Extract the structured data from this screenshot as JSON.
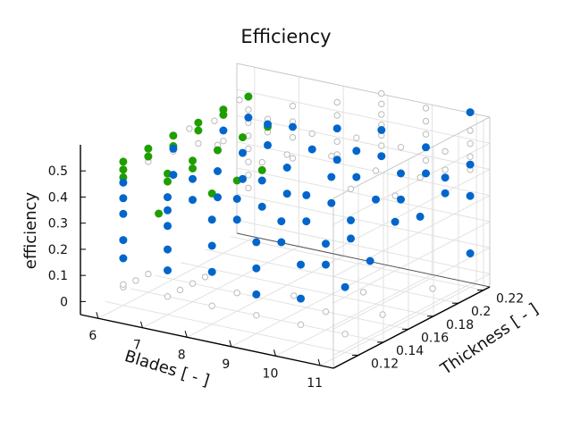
{
  "chart_data": {
    "type": "scatter",
    "title": "Efficiency",
    "xlabel": "Blades [ - ]",
    "ylabel": "Thickness [ - ]",
    "zlabel": "efficiency",
    "xlim": [
      5.6,
      11.3
    ],
    "ylim": [
      0.1,
      0.225
    ],
    "zlim": [
      -0.05,
      0.6
    ],
    "xticks": [
      "6",
      "7",
      "8",
      "9",
      "10",
      "11"
    ],
    "yticks": [
      "0.12",
      "0.14",
      "0.16",
      "0.18",
      "0.2",
      "0.22"
    ],
    "zticks": [
      "0",
      "0.1",
      "0.2",
      "0.3",
      "0.4",
      "0.5"
    ],
    "grid": true,
    "colors": {
      "pareto": "#1f9e00",
      "feasible": "#0066cc",
      "other": "#bbbbbb"
    },
    "series": [
      {
        "marker": "open-circle",
        "points": [
          [
            6,
            0.22,
            0.5
          ],
          [
            6,
            0.22,
            0.45
          ],
          [
            6,
            0.22,
            0.4
          ],
          [
            6,
            0.22,
            0.35
          ],
          [
            6,
            0.22,
            0.3
          ],
          [
            6,
            0.22,
            0.25
          ],
          [
            6,
            0.22,
            0.2
          ],
          [
            6,
            0.22,
            0.15
          ],
          [
            6,
            0.2,
            0.48
          ],
          [
            6,
            0.2,
            0.38
          ],
          [
            6,
            0.18,
            0.5
          ],
          [
            6,
            0.18,
            0.42
          ],
          [
            6,
            0.16,
            0.5
          ],
          [
            6,
            0.16,
            0.44
          ],
          [
            6,
            0.14,
            0.5
          ],
          [
            6,
            0.14,
            0.45
          ],
          [
            6,
            0.12,
            0.02
          ],
          [
            6,
            0.12,
            0.03
          ],
          [
            6,
            0.13,
            0.02
          ],
          [
            6,
            0.14,
            0.02
          ],
          [
            7,
            0.22,
            0.5
          ],
          [
            7,
            0.22,
            0.44
          ],
          [
            7,
            0.22,
            0.38
          ],
          [
            7,
            0.22,
            0.3
          ],
          [
            7,
            0.2,
            0.5
          ],
          [
            7,
            0.2,
            0.45
          ],
          [
            7,
            0.18,
            0.48
          ],
          [
            7,
            0.16,
            0.5
          ],
          [
            7,
            0.12,
            0.02
          ],
          [
            7,
            0.13,
            0.02
          ],
          [
            7,
            0.14,
            0.02
          ],
          [
            7,
            0.15,
            0.02
          ],
          [
            8,
            0.22,
            0.55
          ],
          [
            8,
            0.22,
            0.5
          ],
          [
            8,
            0.22,
            0.45
          ],
          [
            8,
            0.22,
            0.4
          ],
          [
            8,
            0.22,
            0.35
          ],
          [
            8,
            0.2,
            0.48
          ],
          [
            8,
            0.18,
            0.45
          ],
          [
            8,
            0.16,
            0.47
          ],
          [
            8,
            0.12,
            0.02
          ],
          [
            8,
            0.14,
            0.02
          ],
          [
            9,
            0.22,
            0.62
          ],
          [
            9,
            0.22,
            0.58
          ],
          [
            9,
            0.22,
            0.54
          ],
          [
            9,
            0.22,
            0.5
          ],
          [
            9,
            0.22,
            0.46
          ],
          [
            9,
            0.22,
            0.42
          ],
          [
            9,
            0.2,
            0.5
          ],
          [
            9,
            0.18,
            0.48
          ],
          [
            9,
            0.12,
            0.02
          ],
          [
            9,
            0.15,
            0.02
          ],
          [
            10,
            0.22,
            0.6
          ],
          [
            10,
            0.22,
            0.55
          ],
          [
            10,
            0.22,
            0.5
          ],
          [
            10,
            0.22,
            0.45
          ],
          [
            10,
            0.22,
            0.4
          ],
          [
            10,
            0.2,
            0.5
          ],
          [
            10,
            0.18,
            0.46
          ],
          [
            10,
            0.16,
            0.44
          ],
          [
            10,
            0.12,
            0.02
          ],
          [
            10,
            0.14,
            0.02
          ],
          [
            10,
            0.17,
            0.02
          ],
          [
            11,
            0.22,
            0.55
          ],
          [
            11,
            0.22,
            0.5
          ],
          [
            11,
            0.22,
            0.45
          ],
          [
            11,
            0.22,
            0.4
          ],
          [
            11,
            0.2,
            0.52
          ],
          [
            11,
            0.2,
            0.45
          ],
          [
            11,
            0.18,
            0.47
          ],
          [
            11,
            0.16,
            0.45
          ],
          [
            11,
            0.12,
            0.02
          ],
          [
            11,
            0.15,
            0.02
          ],
          [
            11,
            0.19,
            0.02
          ],
          [
            5.8,
            0.22,
            0.48
          ],
          [
            5.8,
            0.2,
            0.45
          ],
          [
            5.8,
            0.18,
            0.47
          ]
        ]
      },
      {
        "marker": "filled-circle",
        "points": [
          [
            6,
            0.12,
            0.5
          ],
          [
            6,
            0.12,
            0.47
          ],
          [
            6,
            0.12,
            0.44
          ],
          [
            6,
            0.14,
            0.5
          ],
          [
            6,
            0.14,
            0.47
          ],
          [
            6,
            0.16,
            0.5
          ],
          [
            6,
            0.16,
            0.46
          ],
          [
            6,
            0.18,
            0.5
          ],
          [
            6,
            0.18,
            0.47
          ],
          [
            6,
            0.2,
            0.5
          ],
          [
            6,
            0.2,
            0.48
          ],
          [
            6,
            0.22,
            0.5
          ],
          [
            7,
            0.12,
            0.49
          ],
          [
            7,
            0.12,
            0.46
          ],
          [
            7,
            0.14,
            0.49
          ],
          [
            7,
            0.14,
            0.46
          ],
          [
            7,
            0.16,
            0.48
          ],
          [
            7,
            0.18,
            0.48
          ],
          [
            7,
            0.2,
            0.47
          ],
          [
            8,
            0.12,
            0.45
          ],
          [
            8,
            0.14,
            0.45
          ],
          [
            8,
            0.16,
            0.44
          ],
          [
            6.8,
            0.12,
            0.33
          ]
        ]
      },
      {
        "marker": "filled-circle",
        "points": [
          [
            6,
            0.12,
            0.42
          ],
          [
            6,
            0.12,
            0.36
          ],
          [
            6,
            0.12,
            0.3
          ],
          [
            6,
            0.12,
            0.2
          ],
          [
            6,
            0.12,
            0.13
          ],
          [
            6,
            0.16,
            0.45
          ],
          [
            6,
            0.16,
            0.35
          ],
          [
            6,
            0.2,
            0.42
          ],
          [
            6,
            0.22,
            0.42
          ],
          [
            7,
            0.12,
            0.4
          ],
          [
            7,
            0.12,
            0.35
          ],
          [
            7,
            0.12,
            0.29
          ],
          [
            7,
            0.12,
            0.2
          ],
          [
            7,
            0.12,
            0.12
          ],
          [
            7,
            0.14,
            0.42
          ],
          [
            7,
            0.14,
            0.34
          ],
          [
            7,
            0.16,
            0.4
          ],
          [
            7,
            0.16,
            0.3
          ],
          [
            7,
            0.18,
            0.42
          ],
          [
            7,
            0.18,
            0.32
          ],
          [
            7,
            0.2,
            0.48
          ],
          [
            7,
            0.2,
            0.4
          ],
          [
            7,
            0.22,
            0.42
          ],
          [
            8,
            0.12,
            0.35
          ],
          [
            8,
            0.12,
            0.25
          ],
          [
            8,
            0.12,
            0.15
          ],
          [
            8,
            0.14,
            0.38
          ],
          [
            8,
            0.14,
            0.3
          ],
          [
            8,
            0.16,
            0.4
          ],
          [
            8,
            0.16,
            0.3
          ],
          [
            8,
            0.18,
            0.4
          ],
          [
            8,
            0.18,
            0.3
          ],
          [
            8,
            0.2,
            0.42
          ],
          [
            8,
            0.22,
            0.45
          ],
          [
            8,
            0.22,
            0.33
          ],
          [
            9,
            0.12,
            0.3
          ],
          [
            9,
            0.12,
            0.2
          ],
          [
            9,
            0.12,
            0.1
          ],
          [
            9,
            0.14,
            0.33
          ],
          [
            9,
            0.14,
            0.25
          ],
          [
            9,
            0.16,
            0.38
          ],
          [
            9,
            0.16,
            0.28
          ],
          [
            9,
            0.18,
            0.4
          ],
          [
            9,
            0.18,
            0.3
          ],
          [
            9,
            0.2,
            0.45
          ],
          [
            9,
            0.2,
            0.35
          ],
          [
            9,
            0.22,
            0.48
          ],
          [
            9,
            0.22,
            0.38
          ],
          [
            10,
            0.12,
            0.25
          ],
          [
            10,
            0.12,
            0.12
          ],
          [
            10,
            0.14,
            0.28
          ],
          [
            10,
            0.14,
            0.2
          ],
          [
            10,
            0.16,
            0.32
          ],
          [
            10,
            0.16,
            0.25
          ],
          [
            10,
            0.18,
            0.35
          ],
          [
            10,
            0.2,
            0.4
          ],
          [
            10,
            0.2,
            0.3
          ],
          [
            10,
            0.22,
            0.45
          ],
          [
            10,
            0.22,
            0.35
          ],
          [
            11,
            0.12,
            0.2
          ],
          [
            11,
            0.14,
            0.25
          ],
          [
            11,
            0.16,
            0.35
          ],
          [
            11,
            0.18,
            0.32
          ],
          [
            11,
            0.2,
            0.42
          ],
          [
            11,
            0.2,
            0.36
          ],
          [
            11,
            0.22,
            0.62
          ],
          [
            11,
            0.22,
            0.42
          ],
          [
            11,
            0.22,
            0.3
          ],
          [
            11,
            0.22,
            0.08
          ]
        ]
      }
    ]
  }
}
